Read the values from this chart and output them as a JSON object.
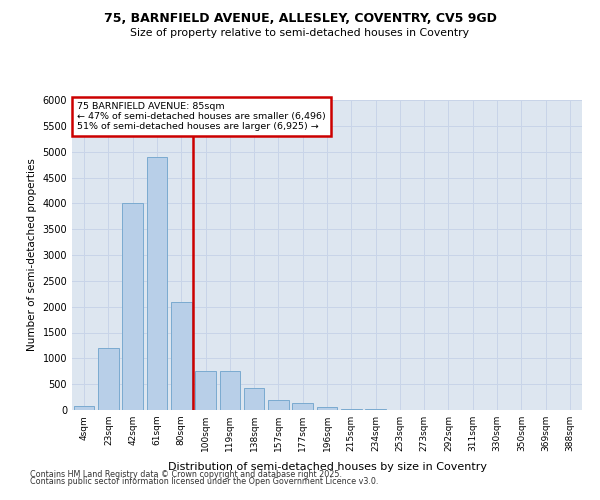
{
  "title1": "75, BARNFIELD AVENUE, ALLESLEY, COVENTRY, CV5 9GD",
  "title2": "Size of property relative to semi-detached houses in Coventry",
  "xlabel": "Distribution of semi-detached houses by size in Coventry",
  "ylabel": "Number of semi-detached properties",
  "categories": [
    "4sqm",
    "23sqm",
    "42sqm",
    "61sqm",
    "80sqm",
    "100sqm",
    "119sqm",
    "138sqm",
    "157sqm",
    "177sqm",
    "196sqm",
    "215sqm",
    "234sqm",
    "253sqm",
    "273sqm",
    "292sqm",
    "311sqm",
    "330sqm",
    "350sqm",
    "369sqm",
    "388sqm"
  ],
  "values": [
    80,
    1200,
    4000,
    4900,
    2100,
    750,
    750,
    420,
    200,
    130,
    50,
    20,
    10,
    5,
    3,
    2,
    1,
    1,
    0,
    0,
    0
  ],
  "bar_color": "#b8cfe8",
  "bar_edge_color": "#7aaad0",
  "vline_color": "#cc0000",
  "annotation_title": "75 BARNFIELD AVENUE: 85sqm",
  "annotation_line1": "← 47% of semi-detached houses are smaller (6,496)",
  "annotation_line2": "51% of semi-detached houses are larger (6,925) →",
  "annotation_box_color": "#cc0000",
  "ylim": [
    0,
    6000
  ],
  "yticks": [
    0,
    500,
    1000,
    1500,
    2000,
    2500,
    3000,
    3500,
    4000,
    4500,
    5000,
    5500,
    6000
  ],
  "grid_color": "#c8d4e8",
  "bg_color": "#dde6f0",
  "footnote1": "Contains HM Land Registry data © Crown copyright and database right 2025.",
  "footnote2": "Contains public sector information licensed under the Open Government Licence v3.0."
}
